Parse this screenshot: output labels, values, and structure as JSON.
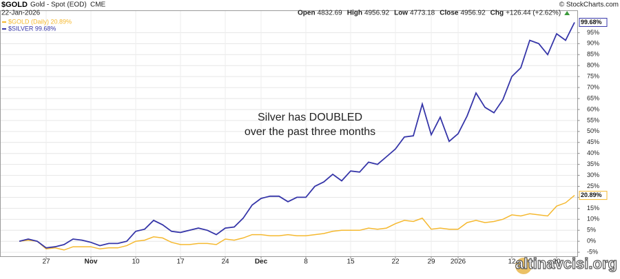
{
  "chart_data": {
    "type": "line",
    "title": "$GOLD",
    "subtitle": "Gold - Spot (EOD)",
    "exchange": "CME",
    "date": "22-Jan-2026",
    "quote": [
      {
        "label": "Open",
        "value": 4832.69
      },
      {
        "label": "High",
        "value": 4956.92
      },
      {
        "label": "Low",
        "value": 4773.18
      },
      {
        "label": "Close",
        "value": 4956.92
      },
      {
        "label": "Chg",
        "value": "+126.44 (+2.62%)"
      }
    ],
    "credit": "© StockCharts.com",
    "annotation": [
      "Silver has DOUBLED",
      "over the past three months"
    ],
    "watermark": "altinavcisi.org",
    "categories": [
      null,
      null,
      null,
      "27",
      null,
      null,
      null,
      null,
      "Nov",
      null,
      null,
      null,
      null,
      "10",
      null,
      null,
      null,
      null,
      "17",
      null,
      null,
      null,
      null,
      "24",
      null,
      null,
      null,
      "Dec",
      null,
      null,
      null,
      null,
      "8",
      null,
      null,
      null,
      null,
      "15",
      null,
      null,
      null,
      null,
      "22",
      null,
      null,
      null,
      "29",
      null,
      null,
      "2026",
      null,
      null,
      null,
      null,
      null,
      "12",
      null,
      null,
      null,
      null,
      "20",
      null,
      null
    ],
    "series": [
      {
        "name": "$GOLD (Daily) 20.89%",
        "color": "#f5b82e",
        "values": [
          0,
          0.5,
          0,
          -3.5,
          -3,
          -4,
          -2.5,
          -2.5,
          -2.5,
          -3.5,
          -3,
          -3,
          -2,
          0,
          0.5,
          2,
          1.5,
          -0.5,
          -1.5,
          -1.5,
          -1,
          -1,
          -1.5,
          1,
          0.5,
          1.5,
          3,
          3,
          2.5,
          2.5,
          3,
          2.5,
          2.5,
          3,
          3.5,
          4.5,
          5,
          5,
          5,
          6,
          5.5,
          6,
          8,
          9.5,
          9,
          10.5,
          5.5,
          6,
          5.5,
          5.5,
          8.5,
          9.5,
          8.5,
          9,
          10,
          12,
          11.5,
          12.5,
          12,
          11.5,
          16,
          17.5,
          20.89
        ],
        "value_labels": [
          null,
          null,
          null,
          null,
          null,
          null,
          null,
          null,
          null,
          null,
          null,
          null,
          null,
          null,
          null,
          null,
          null,
          null,
          null,
          null,
          null,
          null,
          null,
          null,
          null,
          null,
          null,
          null,
          null,
          null,
          null,
          null,
          null,
          null,
          null,
          null,
          null,
          null,
          null,
          null,
          null,
          null,
          null,
          null,
          null,
          null,
          null,
          null,
          null,
          null,
          null,
          null,
          null,
          null,
          null,
          null,
          null,
          null,
          null,
          null,
          null,
          null,
          "20.89%"
        ]
      },
      {
        "name": "$SILVER 99.68%",
        "color": "#3535a8",
        "values": [
          0,
          1,
          0,
          -3,
          -2.5,
          -1.5,
          1,
          0.5,
          -0.5,
          -2,
          -1,
          -1,
          0,
          4.5,
          5.5,
          9.5,
          7.5,
          4.5,
          4,
          5,
          6,
          5,
          3,
          6,
          6.5,
          10.5,
          16.5,
          19.5,
          20.5,
          20.5,
          18,
          20,
          20,
          25,
          27,
          30.5,
          27.5,
          32,
          31.5,
          36,
          35,
          38.5,
          42,
          47.5,
          48,
          62.5,
          48.5,
          56.5,
          45.5,
          49,
          57,
          67.5,
          61,
          58.5,
          64.5,
          75,
          79,
          91.5,
          90,
          85,
          94.5,
          91.5,
          99.68
        ],
        "value_labels": [
          null,
          null,
          null,
          null,
          null,
          null,
          null,
          null,
          null,
          null,
          null,
          null,
          null,
          null,
          null,
          null,
          null,
          null,
          null,
          null,
          null,
          null,
          null,
          null,
          null,
          null,
          null,
          null,
          null,
          null,
          null,
          null,
          null,
          null,
          null,
          null,
          null,
          null,
          null,
          null,
          null,
          null,
          null,
          null,
          null,
          null,
          null,
          null,
          null,
          null,
          null,
          null,
          null,
          null,
          null,
          null,
          null,
          null,
          null,
          null,
          null,
          null,
          "99.68%"
        ]
      }
    ],
    "ylim": [
      -7,
      105
    ],
    "yticks": [
      {
        "value": -5,
        "label": "-5%"
      },
      {
        "value": 0,
        "label": "0%"
      },
      {
        "value": 5,
        "label": "5%"
      },
      {
        "value": 10,
        "label": "10%"
      },
      {
        "value": 15,
        "label": "15%"
      },
      {
        "value": 20,
        "label": "20%"
      },
      {
        "value": 25,
        "label": "25%"
      },
      {
        "value": 30,
        "label": "30%"
      },
      {
        "value": 35,
        "label": "35%"
      },
      {
        "value": 40,
        "label": "40%"
      },
      {
        "value": 45,
        "label": "45%"
      },
      {
        "value": 50,
        "label": "50%"
      },
      {
        "value": 55,
        "label": "55%"
      },
      {
        "value": 60,
        "label": "60%"
      },
      {
        "value": 65,
        "label": "65%"
      },
      {
        "value": 70,
        "label": "70%"
      },
      {
        "value": 75,
        "label": "75%"
      },
      {
        "value": 80,
        "label": "80%"
      },
      {
        "value": 85,
        "label": "85%"
      },
      {
        "value": 90,
        "label": "90%"
      },
      {
        "value": 95,
        "label": "95%"
      }
    ],
    "grid": true
  }
}
